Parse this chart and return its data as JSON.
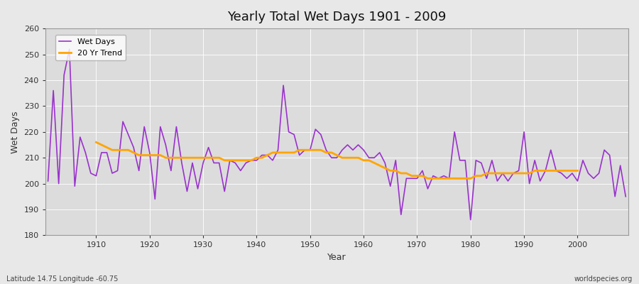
{
  "title": "Yearly Total Wet Days 1901 - 2009",
  "xlabel": "Year",
  "ylabel": "Wet Days",
  "subtitle": "Latitude 14.75 Longitude -60.75",
  "watermark": "worldspecies.org",
  "ylim": [
    180,
    260
  ],
  "yticks": [
    180,
    190,
    200,
    210,
    220,
    230,
    240,
    250,
    260
  ],
  "xlim": [
    1901,
    2009
  ],
  "wet_days_color": "#9932CC",
  "trend_color": "#FFA500",
  "fig_bg_color": "#E8E8E8",
  "plot_bg_color": "#DCDCDC",
  "years": [
    1901,
    1902,
    1903,
    1904,
    1905,
    1906,
    1907,
    1908,
    1909,
    1910,
    1911,
    1912,
    1913,
    1914,
    1915,
    1916,
    1917,
    1918,
    1919,
    1920,
    1921,
    1922,
    1923,
    1924,
    1925,
    1926,
    1927,
    1928,
    1929,
    1930,
    1931,
    1932,
    1933,
    1934,
    1935,
    1936,
    1937,
    1938,
    1939,
    1940,
    1941,
    1942,
    1943,
    1944,
    1945,
    1946,
    1947,
    1948,
    1949,
    1950,
    1951,
    1952,
    1953,
    1954,
    1955,
    1956,
    1957,
    1958,
    1959,
    1960,
    1961,
    1962,
    1963,
    1964,
    1965,
    1966,
    1967,
    1968,
    1969,
    1970,
    1971,
    1972,
    1973,
    1974,
    1975,
    1976,
    1977,
    1978,
    1979,
    1980,
    1981,
    1982,
    1983,
    1984,
    1985,
    1986,
    1987,
    1988,
    1989,
    1990,
    1991,
    1992,
    1993,
    1994,
    1995,
    1996,
    1997,
    1998,
    1999,
    2000,
    2001,
    2002,
    2003,
    2004,
    2005,
    2006,
    2007,
    2008,
    2009
  ],
  "wet_days": [
    201,
    236,
    200,
    242,
    252,
    199,
    218,
    212,
    204,
    203,
    212,
    212,
    204,
    205,
    224,
    219,
    214,
    205,
    222,
    212,
    194,
    222,
    215,
    205,
    222,
    208,
    197,
    208,
    198,
    208,
    214,
    208,
    208,
    197,
    209,
    208,
    205,
    208,
    209,
    209,
    211,
    211,
    209,
    213,
    238,
    220,
    219,
    211,
    213,
    213,
    221,
    219,
    213,
    210,
    210,
    213,
    215,
    213,
    215,
    213,
    210,
    210,
    212,
    208,
    199,
    209,
    188,
    202,
    202,
    202,
    205,
    198,
    203,
    202,
    203,
    202,
    220,
    209,
    209,
    186,
    209,
    208,
    202,
    209,
    201,
    204,
    201,
    204,
    205,
    220,
    200,
    209,
    201,
    205,
    213,
    205,
    204,
    202,
    204,
    201,
    209,
    204,
    202,
    204,
    213,
    211,
    195,
    207,
    195
  ],
  "trend_years": [
    1910,
    1911,
    1912,
    1913,
    1914,
    1915,
    1916,
    1917,
    1918,
    1919,
    1920,
    1921,
    1922,
    1923,
    1924,
    1925,
    1926,
    1927,
    1928,
    1929,
    1930,
    1931,
    1932,
    1933,
    1934,
    1935,
    1936,
    1937,
    1938,
    1939,
    1940,
    1941,
    1942,
    1943,
    1944,
    1945,
    1946,
    1947,
    1948,
    1949,
    1950,
    1951,
    1952,
    1953,
    1954,
    1955,
    1956,
    1957,
    1958,
    1959,
    1960,
    1961,
    1962,
    1963,
    1964,
    1965,
    1966,
    1967,
    1968,
    1969,
    1970,
    1971,
    1972,
    1973,
    1974,
    1975,
    1976,
    1977,
    1978,
    1979,
    1980,
    1981,
    1982,
    1983,
    1984,
    1985,
    1986,
    1987,
    1988,
    1989,
    1990,
    1991,
    1992,
    1993,
    1994,
    1995,
    1996,
    1997,
    1998,
    1999,
    2000
  ],
  "trend_values": [
    216,
    215,
    214,
    213,
    213,
    213,
    213,
    212,
    211,
    211,
    211,
    211,
    211,
    210,
    210,
    210,
    210,
    210,
    210,
    210,
    210,
    210,
    210,
    210,
    209,
    209,
    209,
    209,
    209,
    209,
    210,
    210,
    211,
    212,
    212,
    212,
    212,
    212,
    213,
    213,
    213,
    213,
    213,
    212,
    212,
    211,
    210,
    210,
    210,
    210,
    209,
    209,
    208,
    207,
    206,
    205,
    205,
    204,
    204,
    203,
    203,
    203,
    202,
    202,
    202,
    202,
    202,
    202,
    202,
    202,
    202,
    203,
    203,
    204,
    204,
    204,
    204,
    204,
    204,
    204,
    204,
    204,
    205,
    205,
    205,
    205,
    205,
    205,
    205,
    205,
    205
  ],
  "xticks": [
    1910,
    1920,
    1930,
    1940,
    1950,
    1960,
    1970,
    1980,
    1990,
    2000
  ],
  "legend_labels": [
    "Wet Days",
    "20 Yr Trend"
  ]
}
